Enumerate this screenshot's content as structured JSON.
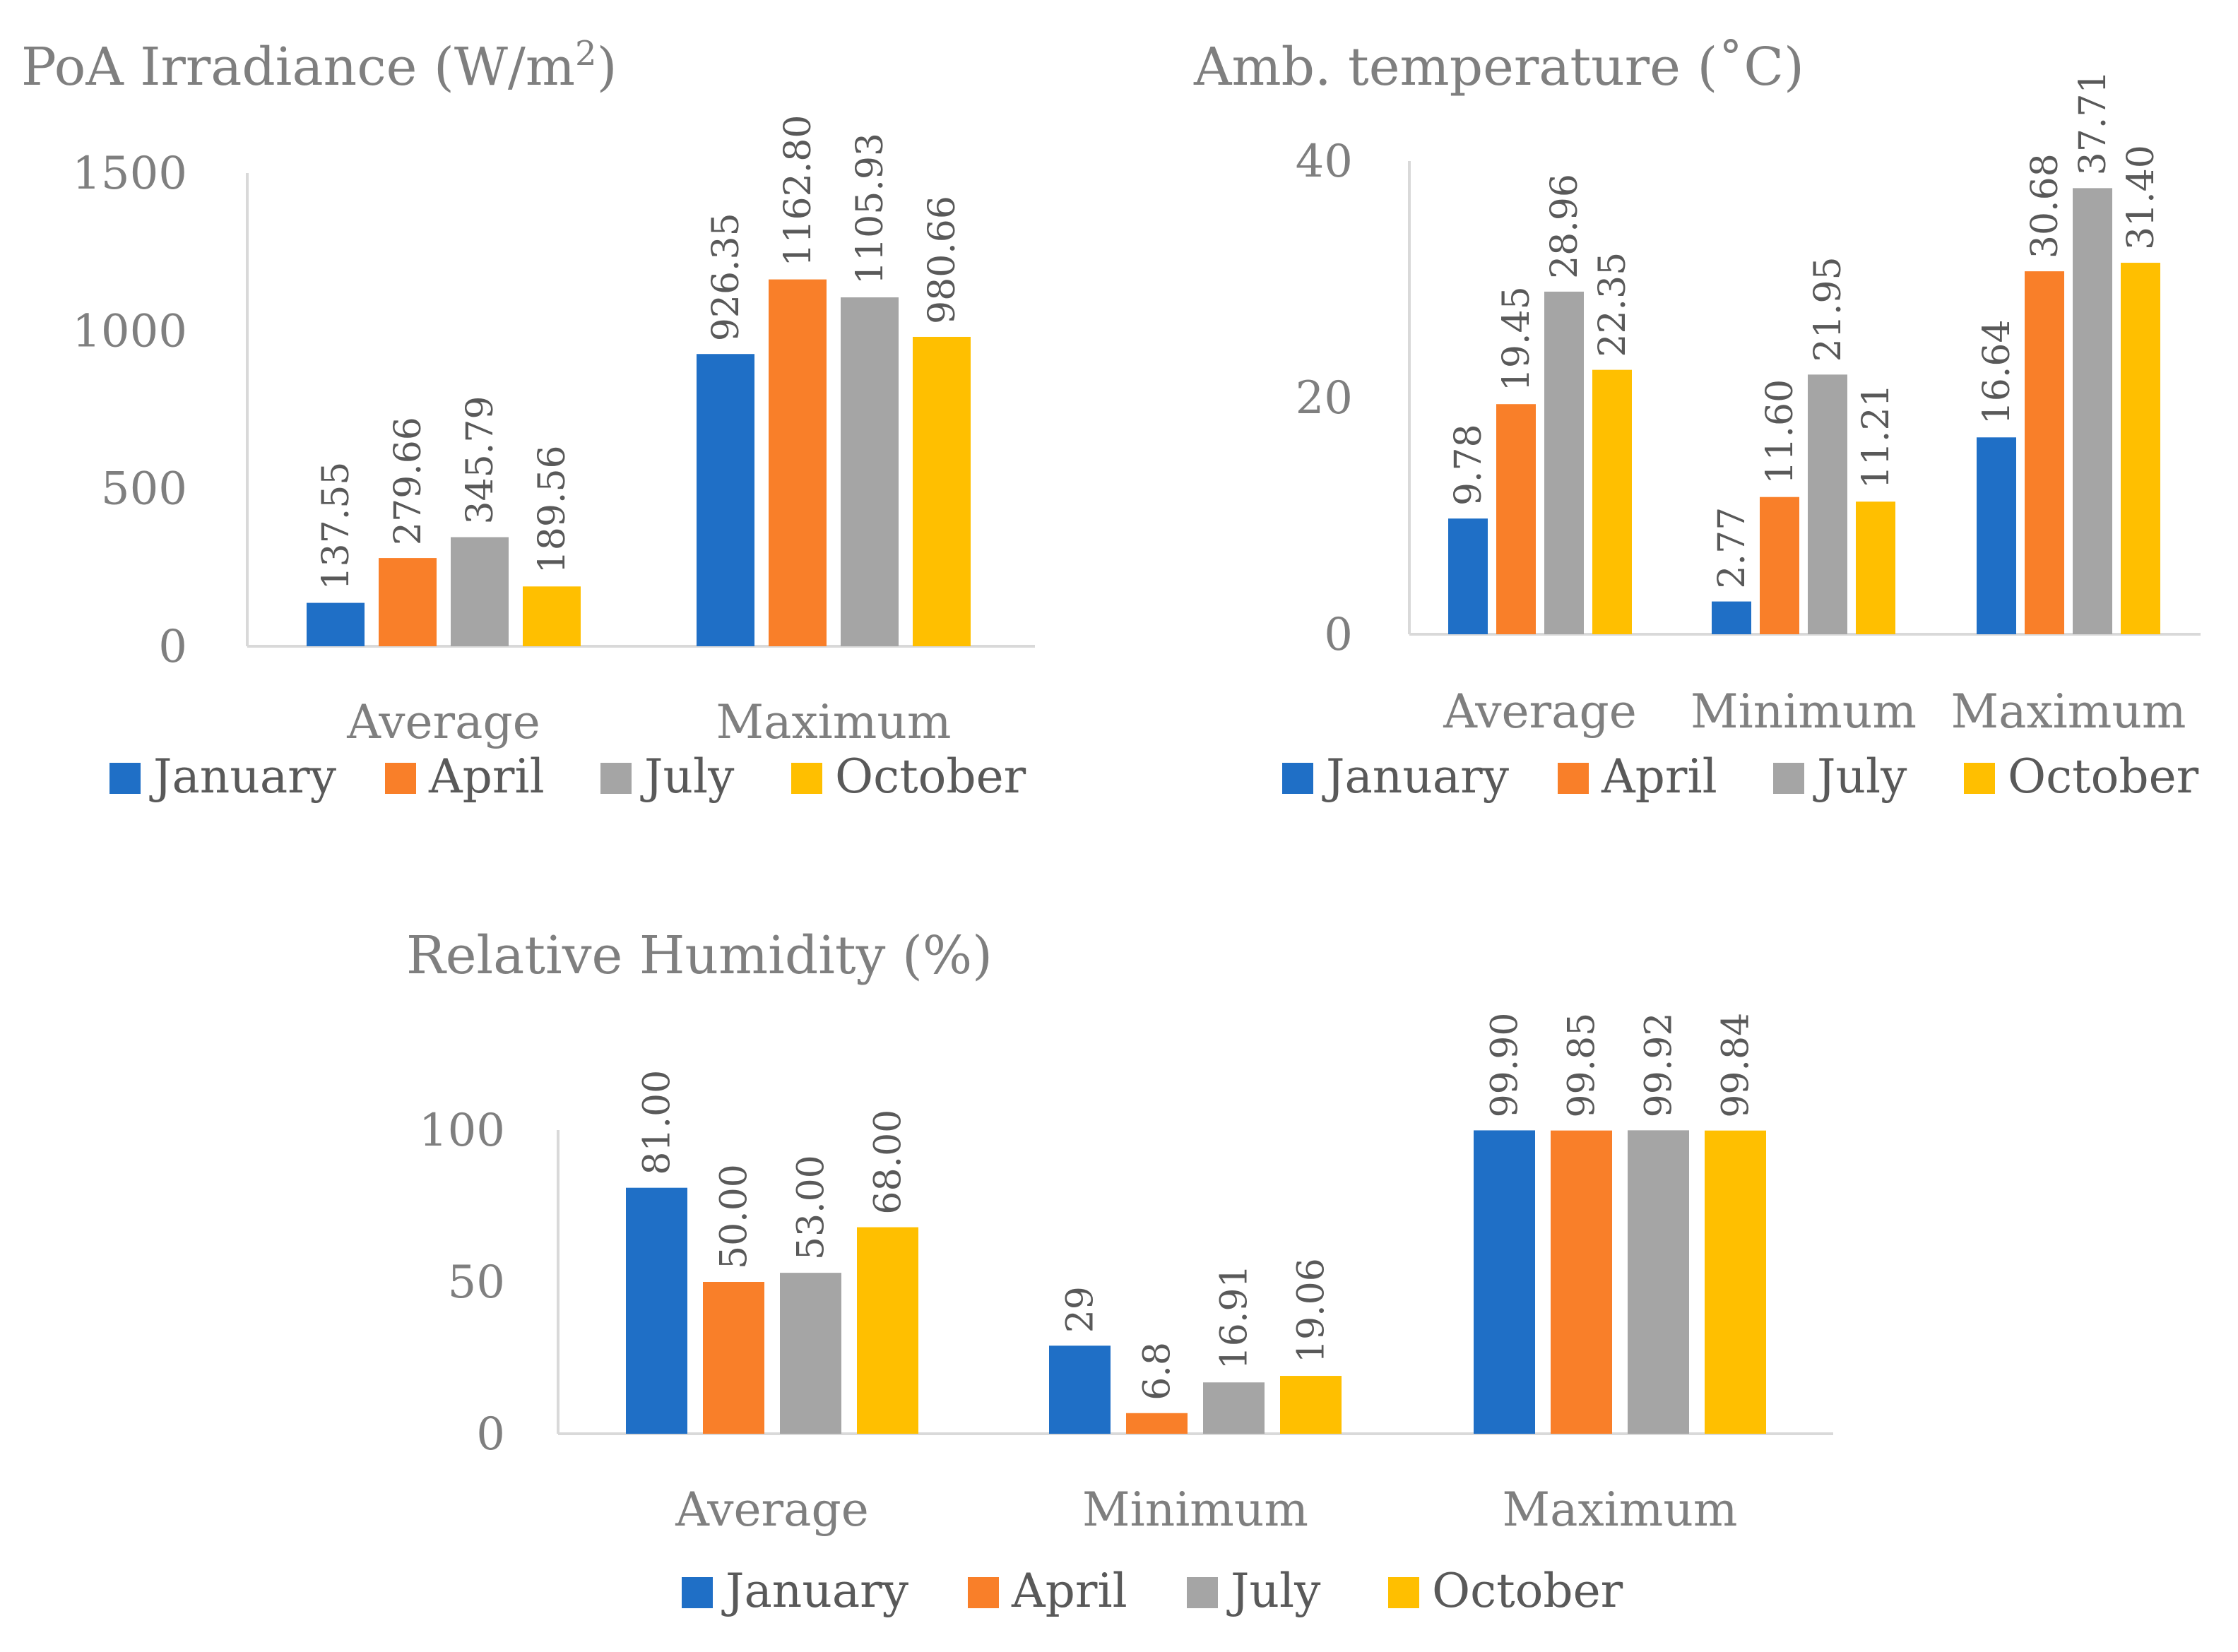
{
  "chart_data": [
    {
      "type": "bar",
      "title": "PoA Irradiance (W/m",
      "title_sup": "2",
      "title_suffix": ")",
      "categories": [
        "Average",
        "Maximum"
      ],
      "series": [
        {
          "name": "January",
          "values": [
            137.55,
            926.35
          ],
          "labels": [
            "137.55",
            "926.35"
          ]
        },
        {
          "name": "April",
          "values": [
            279.66,
            1162.8
          ],
          "labels": [
            "279.66",
            "1162.80"
          ]
        },
        {
          "name": "July",
          "values": [
            345.79,
            1105.93
          ],
          "labels": [
            "345.79",
            "1105.93"
          ]
        },
        {
          "name": "October",
          "values": [
            189.56,
            980.66
          ],
          "labels": [
            "189.56",
            "980.66"
          ]
        }
      ],
      "yticks": [
        "0",
        "500",
        "1000",
        "1500"
      ],
      "ylim": [
        0,
        1500
      ],
      "xlabel": "",
      "ylabel": "",
      "legend": "bottom"
    },
    {
      "type": "bar",
      "title": "Amb. temperature (˚C)",
      "categories": [
        "Average",
        "Minimum",
        "Maximum"
      ],
      "series": [
        {
          "name": "January",
          "values": [
            9.78,
            2.77,
            16.64
          ],
          "labels": [
            "9.78",
            "2.77",
            "16.64"
          ]
        },
        {
          "name": "April",
          "values": [
            19.45,
            11.6,
            30.68
          ],
          "labels": [
            "19.45",
            "11.60",
            "30.68"
          ]
        },
        {
          "name": "July",
          "values": [
            28.96,
            21.95,
            37.71
          ],
          "labels": [
            "28.96",
            "21.95",
            "37.71"
          ]
        },
        {
          "name": "October",
          "values": [
            22.35,
            11.21,
            31.4
          ],
          "labels": [
            "22.35",
            "11.21",
            "31.40"
          ]
        }
      ],
      "yticks": [
        "0",
        "20",
        "40"
      ],
      "ylim": [
        0,
        40
      ],
      "xlabel": "",
      "ylabel": "",
      "legend": "bottom"
    },
    {
      "type": "bar",
      "title": "Relative Humidity (%)",
      "categories": [
        "Average",
        "Minimum",
        "Maximum"
      ],
      "series": [
        {
          "name": "January",
          "values": [
            81.0,
            29,
            99.9
          ],
          "labels": [
            "81.00",
            "29",
            "99.90"
          ]
        },
        {
          "name": "April",
          "values": [
            50.0,
            6.8,
            99.85
          ],
          "labels": [
            "50.00",
            "6.8",
            "99.85"
          ]
        },
        {
          "name": "July",
          "values": [
            53.0,
            16.91,
            99.92
          ],
          "labels": [
            "53.00",
            "16.91",
            "99.92"
          ]
        },
        {
          "name": "October",
          "values": [
            68.0,
            19.06,
            99.84
          ],
          "labels": [
            "68.00",
            "19.06",
            "99.84"
          ]
        }
      ],
      "yticks": [
        "0",
        "50",
        "100"
      ],
      "ylim": [
        0,
        100
      ],
      "xlabel": "",
      "ylabel": "",
      "legend": "bottom"
    }
  ],
  "colors": {
    "January": "#1f6fc6",
    "April": "#f97f29",
    "July": "#a5a5a5",
    "October": "#ffbf00"
  }
}
